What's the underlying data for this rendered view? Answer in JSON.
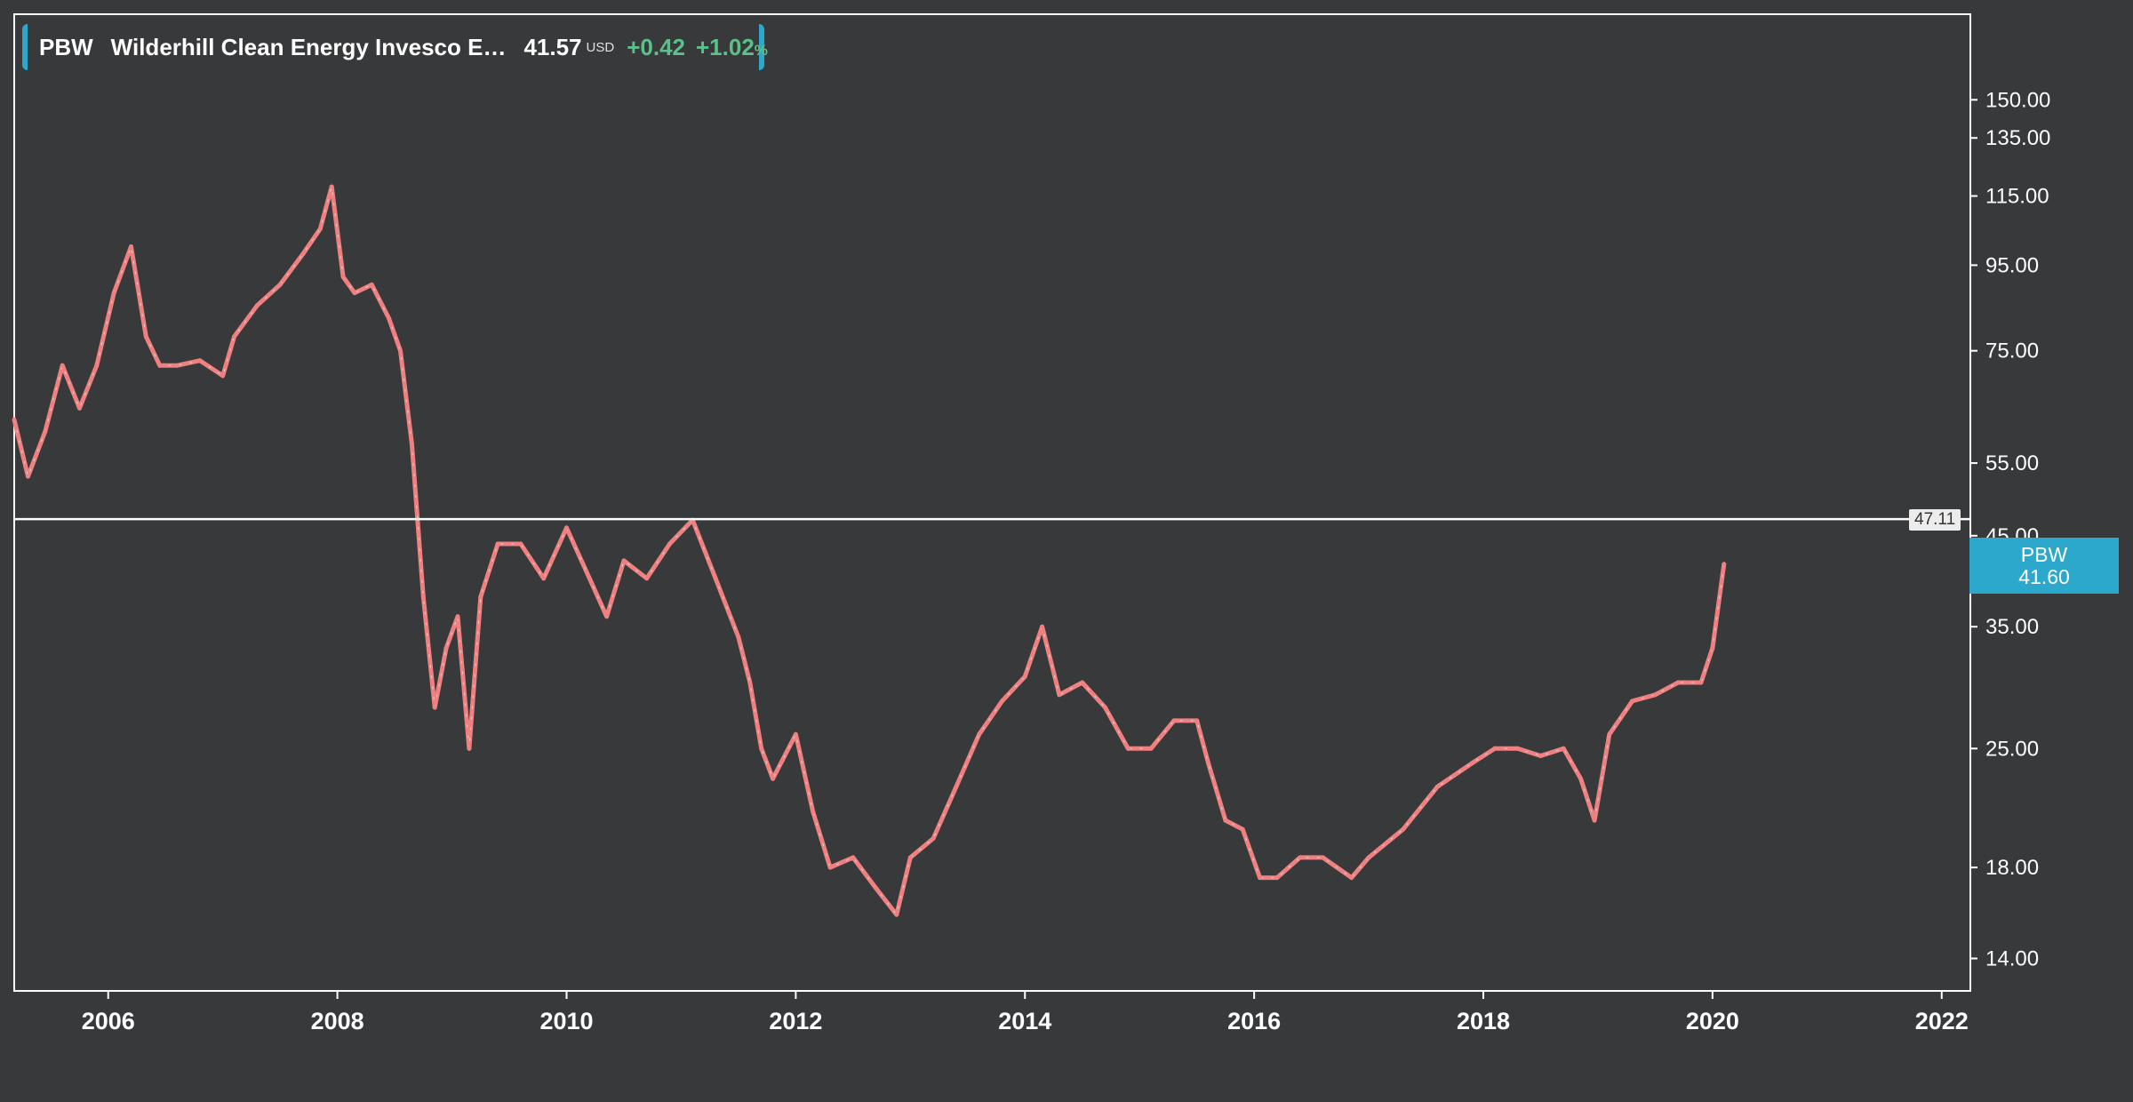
{
  "legend": {
    "symbol": "PBW",
    "name": "Wilderhill Clean Energy Invesco E…",
    "price": "41.57",
    "currency": "USD",
    "change": "+0.42",
    "change_pct": "+1.02",
    "pct_sign": "%"
  },
  "last_price_tag": {
    "symbol": "PBW",
    "price": "41.60"
  },
  "horizontal_line": {
    "label": "47.11"
  },
  "colors": {
    "background": "#38393b",
    "axis": "#ffffff",
    "series": "#f08080",
    "series_alt": "#cfd8dc",
    "accent": "#2ba8cc",
    "positive": "#5cc08a"
  },
  "chart_data": {
    "type": "line",
    "title": "",
    "xlabel": "",
    "ylabel": "",
    "y_scale": "log",
    "ylim": [
      12.8,
      190
    ],
    "xlim": [
      2005.18,
      2022.25
    ],
    "x_ticks": [
      "2006",
      "2008",
      "2010",
      "2012",
      "2014",
      "2016",
      "2018",
      "2020",
      "2022"
    ],
    "y_ticks": [
      "150.00",
      "135.00",
      "115.00",
      "95.00",
      "75.00",
      "55.00",
      "45.00",
      "35.00",
      "25.00",
      "18.00",
      "14.00"
    ],
    "y_tick_values": [
      150,
      135,
      115,
      95,
      75,
      55,
      45,
      35,
      25,
      18,
      14
    ],
    "horizontal_line_value": 47.11,
    "legend_position": "top-left",
    "grid": false,
    "series": [
      {
        "name": "PBW",
        "x": [
          2005.18,
          2005.3,
          2005.45,
          2005.6,
          2005.75,
          2005.9,
          2006.05,
          2006.2,
          2006.33,
          2006.45,
          2006.6,
          2006.8,
          2007.0,
          2007.1,
          2007.3,
          2007.5,
          2007.7,
          2007.85,
          2007.95,
          2008.05,
          2008.15,
          2008.3,
          2008.45,
          2008.55,
          2008.65,
          2008.75,
          2008.85,
          2008.95,
          2009.05,
          2009.15,
          2009.25,
          2009.4,
          2009.6,
          2009.8,
          2010.0,
          2010.2,
          2010.35,
          2010.5,
          2010.7,
          2010.9,
          2011.1,
          2011.3,
          2011.5,
          2011.6,
          2011.7,
          2011.8,
          2012.0,
          2012.15,
          2012.3,
          2012.5,
          2012.7,
          2012.88,
          2013.0,
          2013.2,
          2013.4,
          2013.6,
          2013.8,
          2014.0,
          2014.15,
          2014.3,
          2014.5,
          2014.7,
          2014.9,
          2015.1,
          2015.3,
          2015.5,
          2015.6,
          2015.75,
          2015.9,
          2016.05,
          2016.2,
          2016.4,
          2016.6,
          2016.85,
          2017.0,
          2017.3,
          2017.6,
          2017.9,
          2018.1,
          2018.3,
          2018.5,
          2018.7,
          2018.85,
          2018.97,
          2019.1,
          2019.3,
          2019.5,
          2019.7,
          2019.9,
          2020.0,
          2020.1
        ],
        "y": [
          62,
          53,
          60,
          72,
          64,
          72,
          88,
          100,
          78,
          72,
          72,
          73,
          70,
          78,
          85,
          90,
          98,
          105,
          118,
          92,
          88,
          90,
          82,
          75,
          58,
          38,
          28,
          33,
          36,
          25,
          38,
          44,
          44,
          40,
          46,
          40,
          36,
          42,
          40,
          44,
          47,
          40,
          34,
          30,
          25,
          23,
          26,
          21,
          18,
          18.5,
          17,
          15.8,
          18.5,
          19.5,
          22.5,
          26,
          28.5,
          30.5,
          35,
          29,
          30,
          28,
          25,
          25,
          27,
          27,
          24,
          20.5,
          20,
          17.5,
          17.5,
          18.5,
          18.5,
          17.5,
          18.5,
          20,
          22.5,
          24,
          25,
          25,
          24.5,
          25,
          23,
          20.5,
          26,
          28.5,
          29,
          30,
          30,
          33,
          41.6
        ]
      }
    ]
  }
}
